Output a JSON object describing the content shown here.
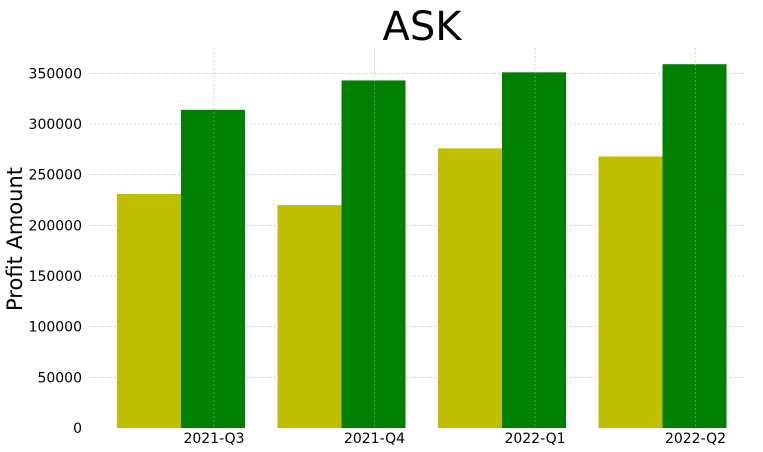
{
  "chart_data": {
    "type": "bar",
    "title": "ASK",
    "xlabel": "",
    "ylabel": "Profit Amount",
    "categories": [
      "2021-Q3",
      "2021-Q4",
      "2022-Q1",
      "2022-Q2"
    ],
    "series": [
      {
        "values": [
          231000,
          220000,
          276000,
          268000
        ],
        "color": "#bfbf00"
      },
      {
        "values": [
          314000,
          343000,
          351000,
          359000
        ],
        "color": "#008000"
      }
    ],
    "ylim": [
      0,
      375000
    ],
    "yticks": [
      0,
      50000,
      100000,
      150000,
      200000,
      250000,
      300000,
      350000
    ],
    "ytick_labels": [
      "0",
      "50000",
      "100000",
      "150000",
      "200000",
      "250000",
      "300000",
      "350000"
    ],
    "grid": true,
    "grid_color": "#b0b0b0"
  }
}
